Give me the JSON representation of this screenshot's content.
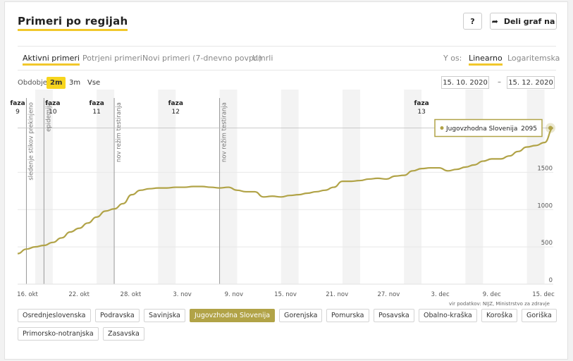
{
  "page": {
    "title": "Primeri po regijah"
  },
  "toolbar": {
    "help_label": "?",
    "share_label": "Deli graf na"
  },
  "tabs": [
    {
      "label": "Aktivni primeri",
      "active": true
    },
    {
      "label": "Potrjeni primeri",
      "active": false
    },
    {
      "label": "Novi primeri (7-dnevno povpr.)",
      "active": false
    },
    {
      "label": "Umrli",
      "active": false
    }
  ],
  "yaxis_scale": {
    "label": "Y os:",
    "options": [
      {
        "label": "Linearno",
        "active": true
      },
      {
        "label": "Logaritemska",
        "active": false
      }
    ]
  },
  "period": {
    "label": "Obdobje",
    "options": [
      {
        "label": "2m",
        "active": true
      },
      {
        "label": "3m",
        "active": false
      },
      {
        "label": "Vse",
        "active": false
      }
    ],
    "from": "15. 10. 2020",
    "to": "15. 12. 2020",
    "separator": "–"
  },
  "chart_data": {
    "type": "line",
    "series_name": "Jugovzhodna Slovenija",
    "color": "#b1a347",
    "x_start": "2020-10-15",
    "x_end": "2020-12-15",
    "x_ticks": [
      "16. okt",
      "22. okt",
      "28. okt",
      "3. nov",
      "9. nov",
      "15. nov",
      "21. nov",
      "27. nov",
      "3. dec",
      "9. dec",
      "15. dec"
    ],
    "ylim": [
      0,
      2100
    ],
    "y_ticks": [
      "0",
      "500",
      "1000",
      "1500"
    ],
    "values": [
      [
        "2020-10-15",
        410
      ],
      [
        "2020-10-16",
        470
      ],
      [
        "2020-10-17",
        500
      ],
      [
        "2020-10-18",
        520
      ],
      [
        "2020-10-19",
        560
      ],
      [
        "2020-10-20",
        620
      ],
      [
        "2020-10-21",
        700
      ],
      [
        "2020-10-22",
        750
      ],
      [
        "2020-10-23",
        820
      ],
      [
        "2020-10-24",
        900
      ],
      [
        "2020-10-25",
        980
      ],
      [
        "2020-10-26",
        1010
      ],
      [
        "2020-10-27",
        1080
      ],
      [
        "2020-10-28",
        1200
      ],
      [
        "2020-10-29",
        1260
      ],
      [
        "2020-10-30",
        1280
      ],
      [
        "2020-10-31",
        1290
      ],
      [
        "2020-11-01",
        1290
      ],
      [
        "2020-11-02",
        1300
      ],
      [
        "2020-11-03",
        1300
      ],
      [
        "2020-11-04",
        1310
      ],
      [
        "2020-11-05",
        1310
      ],
      [
        "2020-11-06",
        1300
      ],
      [
        "2020-11-07",
        1290
      ],
      [
        "2020-11-08",
        1300
      ],
      [
        "2020-11-09",
        1260
      ],
      [
        "2020-11-10",
        1240
      ],
      [
        "2020-11-11",
        1240
      ],
      [
        "2020-11-12",
        1170
      ],
      [
        "2020-11-13",
        1180
      ],
      [
        "2020-11-14",
        1170
      ],
      [
        "2020-11-15",
        1190
      ],
      [
        "2020-11-16",
        1200
      ],
      [
        "2020-11-17",
        1220
      ],
      [
        "2020-11-18",
        1240
      ],
      [
        "2020-11-19",
        1260
      ],
      [
        "2020-11-20",
        1300
      ],
      [
        "2020-11-21",
        1380
      ],
      [
        "2020-11-22",
        1380
      ],
      [
        "2020-11-23",
        1390
      ],
      [
        "2020-11-24",
        1410
      ],
      [
        "2020-11-25",
        1420
      ],
      [
        "2020-11-26",
        1410
      ],
      [
        "2020-11-27",
        1450
      ],
      [
        "2020-11-28",
        1460
      ],
      [
        "2020-11-29",
        1520
      ],
      [
        "2020-11-30",
        1550
      ],
      [
        "2020-12-01",
        1560
      ],
      [
        "2020-12-02",
        1560
      ],
      [
        "2020-12-03",
        1520
      ],
      [
        "2020-12-04",
        1540
      ],
      [
        "2020-12-05",
        1570
      ],
      [
        "2020-12-06",
        1600
      ],
      [
        "2020-12-07",
        1650
      ],
      [
        "2020-12-08",
        1680
      ],
      [
        "2020-12-09",
        1680
      ],
      [
        "2020-12-10",
        1720
      ],
      [
        "2020-12-11",
        1780
      ],
      [
        "2020-12-12",
        1840
      ],
      [
        "2020-12-13",
        1860
      ],
      [
        "2020-12-14",
        1900
      ],
      [
        "2020-12-15",
        2095
      ]
    ],
    "tooltip": {
      "series": "Jugovzhodna Slovenija",
      "value": "2095"
    },
    "phases": [
      {
        "label": "faza\n9",
        "date": "2020-10-15"
      },
      {
        "label": "faza\n10",
        "date": "2020-10-19"
      },
      {
        "label": "faza\n11",
        "date": "2020-10-24"
      },
      {
        "label": "faza\n12",
        "date": "2020-11-02"
      },
      {
        "label": "faza\n13",
        "date": "2020-11-30"
      }
    ],
    "event_lines": [
      {
        "label": "sledenje stikov prekinjeno",
        "date": "2020-10-16"
      },
      {
        "label": "epidemija",
        "date": "2020-10-18"
      },
      {
        "label": "nov režim testiranja",
        "date": "2020-10-26"
      },
      {
        "label": "nov režim testiranja",
        "date": "2020-11-07"
      }
    ],
    "weekends": [
      "2020-10-17",
      "2020-10-24",
      "2020-10-31",
      "2020-11-07",
      "2020-11-14",
      "2020-11-21",
      "2020-11-28",
      "2020-12-05",
      "2020-12-12"
    ],
    "source": "vir podatkov: NIJZ, Ministrstvo za zdravje"
  },
  "regions": [
    {
      "label": "Osrednjeslovenska",
      "active": false
    },
    {
      "label": "Podravska",
      "active": false
    },
    {
      "label": "Savinjska",
      "active": false
    },
    {
      "label": "Jugovzhodna Slovenija",
      "active": true
    },
    {
      "label": "Gorenjska",
      "active": false
    },
    {
      "label": "Pomurska",
      "active": false
    },
    {
      "label": "Posavska",
      "active": false
    },
    {
      "label": "Obalno-kraška",
      "active": false
    },
    {
      "label": "Koroška",
      "active": false
    },
    {
      "label": "Goriška",
      "active": false
    },
    {
      "label": "Primorsko-notranjska",
      "active": false
    },
    {
      "label": "Zasavska",
      "active": false
    }
  ]
}
